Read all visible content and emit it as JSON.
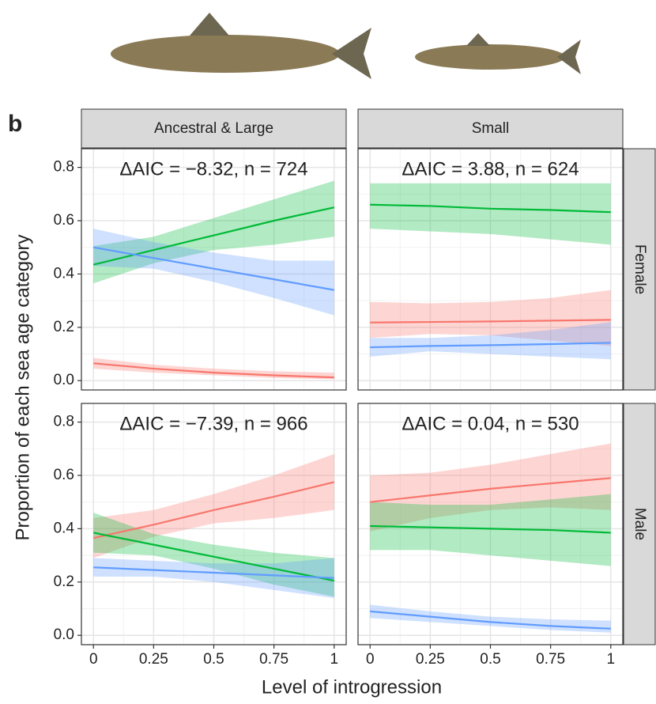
{
  "figure": {
    "panel_label": "b",
    "xlabel": "Level of introgression",
    "ylabel": "Proportion of each sea age category",
    "columns": [
      "Ancestral & Large",
      "Small"
    ],
    "rows": [
      "Female",
      "Male"
    ]
  },
  "chart_data": [
    {
      "type": "line",
      "annotation": "ΔAIC = −8.32, n = 724",
      "x": [
        0,
        0.25,
        0.5,
        0.75,
        1
      ],
      "xlim": [
        -0.05,
        1.05
      ],
      "ylim": [
        -0.035,
        0.87
      ],
      "xticks": [
        0,
        0.25,
        0.5,
        0.75,
        1
      ],
      "yticks": [
        {
          "value": 0,
          "label": "0.0"
        },
        0.2,
        0.4,
        0.6,
        0.8
      ],
      "grid": true,
      "series": [
        {
          "color": "#00BA38",
          "values": [
            0.435,
            0.49,
            0.545,
            0.6,
            0.65
          ],
          "lower": [
            0.365,
            0.44,
            0.49,
            0.51,
            0.54
          ],
          "upper": [
            0.505,
            0.54,
            0.61,
            0.68,
            0.75
          ]
        },
        {
          "color": "#619CFF",
          "values": [
            0.5,
            0.46,
            0.42,
            0.38,
            0.34
          ],
          "lower": [
            0.43,
            0.42,
            0.37,
            0.31,
            0.245
          ],
          "upper": [
            0.57,
            0.52,
            0.48,
            0.45,
            0.45
          ]
        },
        {
          "color": "#F8766D",
          "values": [
            0.065,
            0.045,
            0.03,
            0.02,
            0.012
          ],
          "lower": [
            0.045,
            0.03,
            0.02,
            0.01,
            0.005
          ],
          "upper": [
            0.085,
            0.06,
            0.045,
            0.035,
            0.03
          ]
        }
      ]
    },
    {
      "type": "line",
      "annotation": "ΔAIC = 3.88, n = 624",
      "x": [
        0,
        0.25,
        0.5,
        0.75,
        1
      ],
      "xlim": [
        -0.05,
        1.05
      ],
      "ylim": [
        -0.035,
        0.87
      ],
      "xticks": [
        0,
        0.25,
        0.5,
        0.75,
        1
      ],
      "yticks": [
        {
          "value": 0,
          "label": "0.0"
        },
        0.2,
        0.4,
        0.6,
        0.8
      ],
      "grid": true,
      "series": [
        {
          "color": "#00BA38",
          "values": [
            0.66,
            0.655,
            0.645,
            0.64,
            0.632
          ],
          "lower": [
            0.57,
            0.56,
            0.55,
            0.53,
            0.51
          ],
          "upper": [
            0.74,
            0.74,
            0.74,
            0.74,
            0.74
          ]
        },
        {
          "color": "#F8766D",
          "values": [
            0.218,
            0.22,
            0.222,
            0.225,
            0.228
          ],
          "lower": [
            0.16,
            0.175,
            0.17,
            0.15,
            0.13
          ],
          "upper": [
            0.295,
            0.29,
            0.295,
            0.31,
            0.34
          ]
        },
        {
          "color": "#619CFF",
          "values": [
            0.125,
            0.13,
            0.133,
            0.137,
            0.142
          ],
          "lower": [
            0.09,
            0.11,
            0.1,
            0.09,
            0.08
          ],
          "upper": [
            0.16,
            0.16,
            0.17,
            0.19,
            0.22
          ]
        }
      ]
    },
    {
      "type": "line",
      "annotation": "ΔAIC = −7.39, n = 966",
      "x": [
        0,
        0.25,
        0.5,
        0.75,
        1
      ],
      "xlim": [
        -0.05,
        1.05
      ],
      "ylim": [
        -0.035,
        0.87
      ],
      "xticks": [
        0,
        0.25,
        0.5,
        0.75,
        1
      ],
      "yticks": [
        {
          "value": 0,
          "label": "0.0"
        },
        0.2,
        0.4,
        0.6,
        0.8
      ],
      "grid": true,
      "series": [
        {
          "color": "#F8766D",
          "values": [
            0.365,
            0.415,
            0.47,
            0.52,
            0.575
          ],
          "lower": [
            0.29,
            0.37,
            0.42,
            0.44,
            0.47
          ],
          "upper": [
            0.44,
            0.47,
            0.53,
            0.6,
            0.68
          ]
        },
        {
          "color": "#00BA38",
          "values": [
            0.385,
            0.34,
            0.295,
            0.25,
            0.205
          ],
          "lower": [
            0.31,
            0.3,
            0.25,
            0.19,
            0.145
          ],
          "upper": [
            0.46,
            0.38,
            0.34,
            0.31,
            0.29
          ]
        },
        {
          "color": "#619CFF",
          "values": [
            0.255,
            0.245,
            0.235,
            0.225,
            0.215
          ],
          "lower": [
            0.22,
            0.22,
            0.2,
            0.17,
            0.14
          ],
          "upper": [
            0.29,
            0.28,
            0.27,
            0.27,
            0.29
          ]
        }
      ]
    },
    {
      "type": "line",
      "annotation": "ΔAIC = 0.04, n = 530",
      "x": [
        0,
        0.25,
        0.5,
        0.75,
        1
      ],
      "xlim": [
        -0.05,
        1.05
      ],
      "ylim": [
        -0.035,
        0.87
      ],
      "xticks": [
        0,
        0.25,
        0.5,
        0.75,
        1
      ],
      "yticks": [
        {
          "value": 0,
          "label": "0.0"
        },
        0.2,
        0.4,
        0.6,
        0.8
      ],
      "grid": true,
      "series": [
        {
          "color": "#F8766D",
          "values": [
            0.5,
            0.525,
            0.55,
            0.57,
            0.59
          ],
          "lower": [
            0.39,
            0.44,
            0.47,
            0.48,
            0.47
          ],
          "upper": [
            0.6,
            0.61,
            0.64,
            0.68,
            0.72
          ]
        },
        {
          "color": "#00BA38",
          "values": [
            0.41,
            0.405,
            0.4,
            0.395,
            0.385
          ],
          "lower": [
            0.32,
            0.32,
            0.3,
            0.28,
            0.26
          ],
          "upper": [
            0.5,
            0.49,
            0.49,
            0.51,
            0.53
          ]
        },
        {
          "color": "#619CFF",
          "values": [
            0.09,
            0.07,
            0.05,
            0.035,
            0.025
          ],
          "lower": [
            0.065,
            0.05,
            0.035,
            0.02,
            0.01
          ],
          "upper": [
            0.115,
            0.09,
            0.07,
            0.06,
            0.055
          ]
        }
      ]
    }
  ]
}
